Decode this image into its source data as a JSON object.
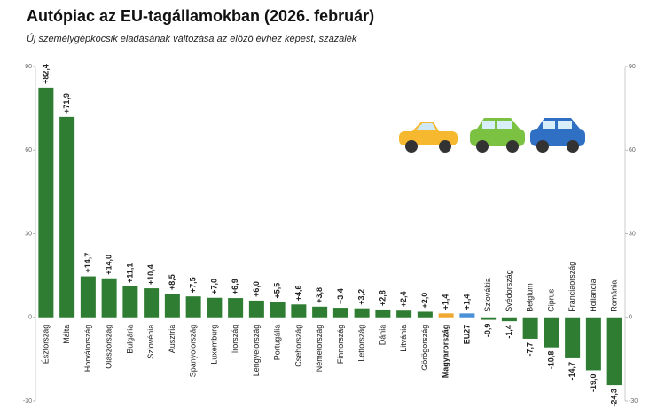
{
  "chart_data": {
    "type": "bar",
    "title": "Autópiac az EU-tagállamokban (2026. február)",
    "subtitle": "Új személygépkocsik eladásának változása az előző évhez képest, százalék",
    "categories": [
      "Észtország",
      "Málta",
      "Horvátország",
      "Olaszország",
      "Bulgária",
      "Szlovénia",
      "Ausztria",
      "Spanyolország",
      "Luxemburg",
      "Írország",
      "Lengyelország",
      "Portugália",
      "Csehország",
      "Németország",
      "Finnország",
      "Lettország",
      "Dánia",
      "Litvánia",
      "Görögország",
      "Magyarország",
      "EU27",
      "Szlovákia",
      "Svédország",
      "Belgium",
      "Ciprus",
      "Franciaország",
      "Hollandia",
      "Románia"
    ],
    "values": [
      82.4,
      71.9,
      14.7,
      14.0,
      11.1,
      10.4,
      8.5,
      7.5,
      7.0,
      6.9,
      6.0,
      5.5,
      4.6,
      3.8,
      3.4,
      3.2,
      2.8,
      2.4,
      2.0,
      1.4,
      1.4,
      -0.9,
      -1.4,
      -7.7,
      -10.8,
      -14.7,
      -19.0,
      -24.3
    ],
    "value_labels": [
      "+82,4",
      "+71,9",
      "+14,7",
      "+14,0",
      "+11,1",
      "+10,4",
      "+8,5",
      "+7,5",
      "+7,0",
      "+6,9",
      "+6,0",
      "+5,5",
      "+4,6",
      "+3,8",
      "+3,4",
      "+3,2",
      "+2,8",
      "+2,4",
      "+2,0",
      "+1,4",
      "+1,4",
      "-0,9",
      "-1,4",
      "-7,7",
      "-10,8",
      "-14,7",
      "-19,0",
      "-24,3"
    ],
    "color": "#2e7d32",
    "colors": [
      "#2e7d32",
      "#2e7d32",
      "#2e7d32",
      "#2e7d32",
      "#2e7d32",
      "#2e7d32",
      "#2e7d32",
      "#2e7d32",
      "#2e7d32",
      "#2e7d32",
      "#2e7d32",
      "#2e7d32",
      "#2e7d32",
      "#2e7d32",
      "#2e7d32",
      "#2e7d32",
      "#2e7d32",
      "#2e7d32",
      "#2e7d32",
      "#f0a830",
      "#4a90d9",
      "#2e7d32",
      "#2e7d32",
      "#2e7d32",
      "#2e7d32",
      "#2e7d32",
      "#2e7d32",
      "#2e7d32"
    ],
    "ylim": [
      -30,
      90
    ],
    "yticks": [
      -30,
      0,
      30,
      60,
      90
    ],
    "grid": false
  }
}
